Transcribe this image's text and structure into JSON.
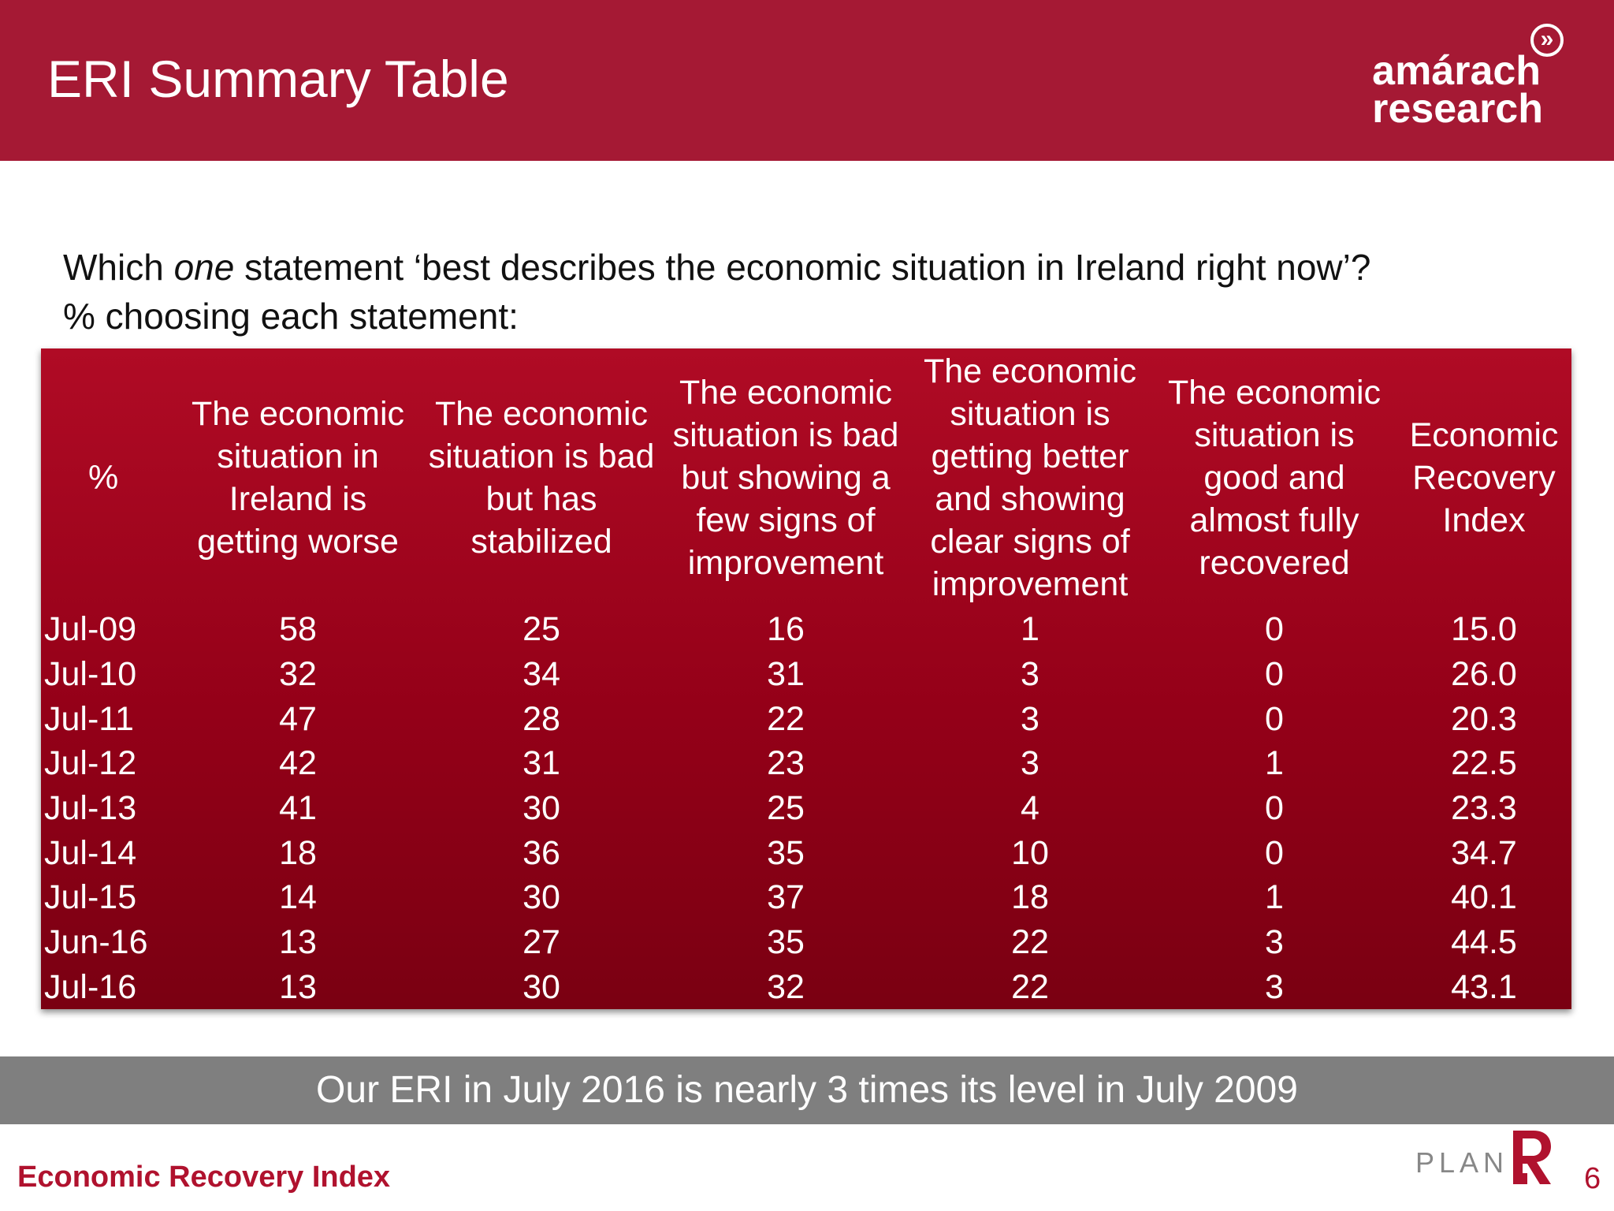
{
  "header": {
    "title": "ERI Summary Table",
    "logo_line1": "amárach",
    "logo_line2": "research",
    "logo_icon": "double-chevron-icon"
  },
  "question": {
    "line1_part1": "Which ",
    "line1_emphasis": "one",
    "line1_part2": " statement ‘best describes the economic situation in Ireland right now’?",
    "line2": "% choosing each statement:"
  },
  "table": {
    "headers": [
      "%",
      "The economic situation in Ireland is getting worse",
      "The economic situation is bad but has stabilized",
      "The economic situation is bad but showing a few signs of improvement",
      "The economic situation is getting better and showing clear signs of improvement",
      "The economic situation is good and almost fully recovered",
      "Economic Recovery Index"
    ],
    "rows": [
      [
        "Jul-09",
        "58",
        "25",
        "16",
        "1",
        "0",
        "15.0"
      ],
      [
        "Jul-10",
        "32",
        "34",
        "31",
        "3",
        "0",
        "26.0"
      ],
      [
        "Jul-11",
        "47",
        "28",
        "22",
        "3",
        "0",
        "20.3"
      ],
      [
        "Jul-12",
        "42",
        "31",
        "23",
        "3",
        "1",
        "22.5"
      ],
      [
        "Jul-13",
        "41",
        "30",
        "25",
        "4",
        "0",
        "23.3"
      ],
      [
        "Jul-14",
        "18",
        "36",
        "35",
        "10",
        "0",
        "34.7"
      ],
      [
        "Jul-15",
        "14",
        "30",
        "37",
        "18",
        "1",
        "40.1"
      ],
      [
        "Jun-16",
        "13",
        "27",
        "35",
        "22",
        "3",
        "44.5"
      ],
      [
        "Jul-16",
        "13",
        "30",
        "32",
        "22",
        "3",
        "43.1"
      ]
    ]
  },
  "banner": {
    "text": "Our ERI in July 2016 is nearly 3 times its level in July 2009"
  },
  "footer": {
    "left_text": "Economic Recovery Index",
    "plan_text": "PLAN",
    "page_number": "6"
  },
  "colors": {
    "header_bg": "#a51934",
    "table_bg_top": "#b00b25",
    "table_bg_bottom": "#7a0012",
    "banner_bg": "#7f7f7f",
    "footer_accent": "#b0122e"
  }
}
